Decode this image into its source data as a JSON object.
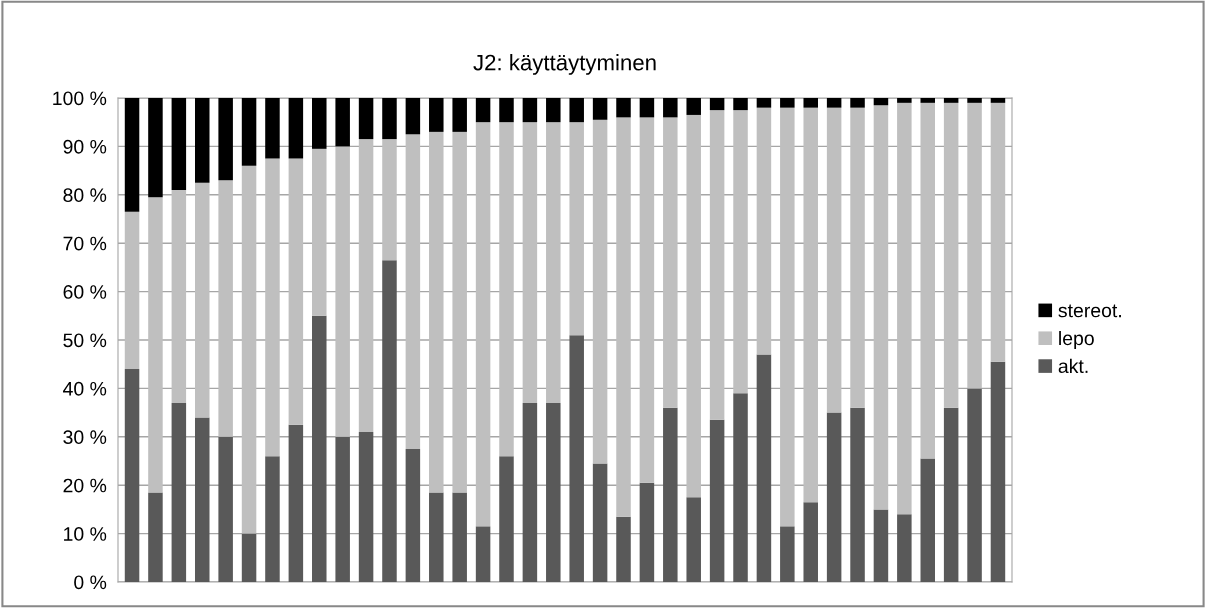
{
  "chart_data": {
    "type": "bar",
    "title": "J2: käyttäytyminen",
    "stacked": true,
    "categories": [
      null,
      null,
      null,
      null,
      null,
      null,
      null,
      null,
      null,
      null,
      null,
      null,
      null,
      null,
      null,
      null,
      null,
      null,
      null,
      null,
      null,
      null,
      null,
      null,
      null,
      null,
      null,
      null,
      null,
      null,
      null,
      null,
      null,
      null,
      null,
      null,
      null,
      null
    ],
    "series": [
      {
        "name": "akt.",
        "color": "#595959",
        "values": [
          44,
          18.5,
          37,
          34,
          30,
          10,
          26,
          32.5,
          55,
          30,
          31,
          66.5,
          27.5,
          18.5,
          18.5,
          11.5,
          26,
          37,
          37,
          51,
          24.5,
          13.5,
          20.5,
          36,
          17.5,
          33.5,
          39,
          47,
          11.5,
          16.5,
          35,
          36,
          15,
          14,
          25.5,
          36,
          40,
          45.5
        ]
      },
      {
        "name": "lepo",
        "color": "#bfbfbf",
        "values": [
          32.5,
          61,
          44,
          48.5,
          53,
          76,
          61.5,
          55,
          34.5,
          60,
          60.5,
          25,
          65,
          74.5,
          74.5,
          83.5,
          69,
          58,
          58,
          44,
          71,
          82.5,
          75.5,
          60,
          79,
          64,
          58.5,
          51,
          86.5,
          81.5,
          63,
          62,
          83.5,
          85,
          73.5,
          63,
          59,
          53.5
        ]
      },
      {
        "name": "stereot.",
        "color": "#000000",
        "values": [
          23.5,
          20.5,
          19,
          17.5,
          17,
          14,
          12.5,
          12.5,
          10.5,
          10,
          8.5,
          8.5,
          7.5,
          7,
          7,
          5,
          5,
          5,
          5,
          5,
          4.5,
          4,
          4,
          4,
          3.5,
          2.5,
          2.5,
          2,
          2,
          2,
          2,
          2,
          1.5,
          1,
          1,
          1,
          1,
          1
        ]
      }
    ],
    "ylim": [
      0,
      100
    ],
    "yticks": [
      {
        "value": 0,
        "label": "0 %"
      },
      {
        "value": 10,
        "label": "10 %"
      },
      {
        "value": 20,
        "label": "20 %"
      },
      {
        "value": 30,
        "label": "30 %"
      },
      {
        "value": 40,
        "label": "40 %"
      },
      {
        "value": 50,
        "label": "50 %"
      },
      {
        "value": 60,
        "label": "60 %"
      },
      {
        "value": 70,
        "label": "70 %"
      },
      {
        "value": 80,
        "label": "80 %"
      },
      {
        "value": 90,
        "label": "90 %"
      },
      {
        "value": 100,
        "label": "100 %"
      }
    ],
    "grid": "y",
    "legend": "right"
  }
}
